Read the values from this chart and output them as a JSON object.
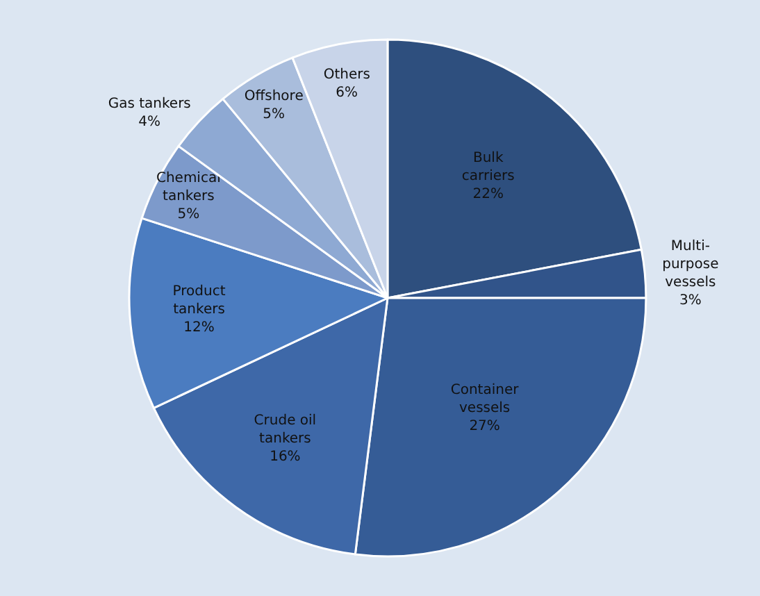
{
  "chart_data": {
    "type": "pie",
    "categories": [
      "Bulk carriers",
      "Multi-purpose vessels",
      "Container vessels",
      "Crude oil tankers",
      "Product tankers",
      "Chemical tankers",
      "Gas tankers",
      "Offshore",
      "Others"
    ],
    "values": [
      22,
      3,
      27,
      16,
      12,
      5,
      4,
      5,
      6
    ],
    "value_labels": [
      "22%",
      "3%",
      "27%",
      "16%",
      "12%",
      "5%",
      "4%",
      "5%",
      "6%"
    ],
    "colors": [
      "#2e4f7e",
      "#31548a",
      "#355c96",
      "#3e68a8",
      "#4b7cc0",
      "#7d9acb",
      "#8ea9d3",
      "#a9bddc",
      "#c8d4e9"
    ],
    "legend": false
  }
}
